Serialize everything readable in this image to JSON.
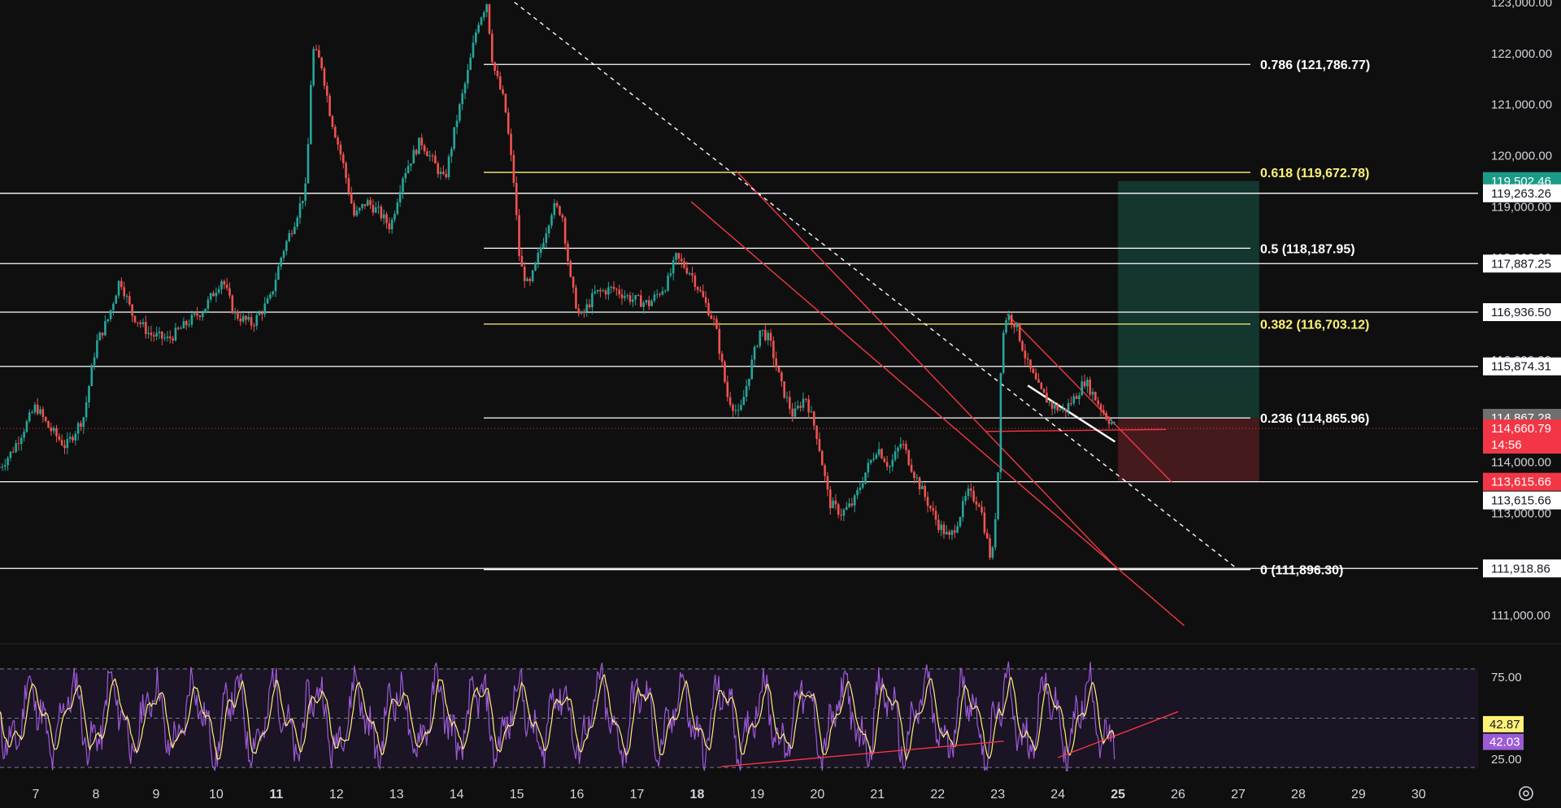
{
  "chart_data": [
    {
      "type": "candlestick",
      "price_axis": {
        "range": [
          110400,
          123000
        ],
        "ticks": [
          "123,000.00",
          "122,000.00",
          "121,000.00",
          "120,000.00",
          "119,000.00",
          "118,000.00",
          "117,000.00",
          "116,000.00",
          "114,000.00",
          "113,000.00",
          "112,000.00",
          "111,000.00"
        ]
      },
      "x_axis": {
        "ticks": [
          {
            "label": "7",
            "day": 7
          },
          {
            "label": "8",
            "day": 8
          },
          {
            "label": "9",
            "day": 9
          },
          {
            "label": "10",
            "day": 10
          },
          {
            "label": "11",
            "day": 11,
            "bold": true
          },
          {
            "label": "12",
            "day": 12
          },
          {
            "label": "13",
            "day": 13
          },
          {
            "label": "14",
            "day": 14
          },
          {
            "label": "15",
            "day": 15
          },
          {
            "label": "16",
            "day": 16
          },
          {
            "label": "17",
            "day": 17
          },
          {
            "label": "18",
            "day": 18,
            "bold": true
          },
          {
            "label": "19",
            "day": 19
          },
          {
            "label": "20",
            "day": 20
          },
          {
            "label": "21",
            "day": 21
          },
          {
            "label": "22",
            "day": 22
          },
          {
            "label": "23",
            "day": 23
          },
          {
            "label": "24",
            "day": 24
          },
          {
            "label": "25",
            "day": 25,
            "bold": true
          },
          {
            "label": "26",
            "day": 26
          },
          {
            "label": "27",
            "day": 27
          },
          {
            "label": "28",
            "day": 28
          },
          {
            "label": "29",
            "day": 29
          },
          {
            "label": "30",
            "day": 30
          }
        ]
      },
      "path_points": [
        [
          6.4,
          113900
        ],
        [
          6.6,
          114200
        ],
        [
          7.0,
          115100
        ],
        [
          7.2,
          114700
        ],
        [
          7.5,
          114300
        ],
        [
          7.8,
          114900
        ],
        [
          8.0,
          116300
        ],
        [
          8.2,
          116800
        ],
        [
          8.4,
          117600
        ],
        [
          8.6,
          116900
        ],
        [
          8.9,
          116500
        ],
        [
          9.2,
          116400
        ],
        [
          9.5,
          116700
        ],
        [
          9.8,
          117000
        ],
        [
          10.1,
          117600
        ],
        [
          10.3,
          116900
        ],
        [
          10.6,
          116700
        ],
        [
          10.9,
          117200
        ],
        [
          11.1,
          118100
        ],
        [
          11.3,
          118700
        ],
        [
          11.5,
          119400
        ],
        [
          11.6,
          122100
        ],
        [
          11.75,
          121800
        ],
        [
          11.9,
          120800
        ],
        [
          12.1,
          119900
        ],
        [
          12.3,
          118800
        ],
        [
          12.5,
          119100
        ],
        [
          12.7,
          118900
        ],
        [
          12.9,
          118600
        ],
        [
          13.1,
          119600
        ],
        [
          13.4,
          120300
        ],
        [
          13.6,
          119900
        ],
        [
          13.8,
          119500
        ],
        [
          14.0,
          120700
        ],
        [
          14.2,
          121700
        ],
        [
          14.35,
          122600
        ],
        [
          14.5,
          123000
        ],
        [
          14.6,
          121800
        ],
        [
          14.8,
          121000
        ],
        [
          14.95,
          119500
        ],
        [
          15.05,
          117900
        ],
        [
          15.2,
          117400
        ],
        [
          15.4,
          118200
        ],
        [
          15.6,
          119000
        ],
        [
          15.75,
          118900
        ],
        [
          15.9,
          117500
        ],
        [
          16.05,
          116800
        ],
        [
          16.3,
          117300
        ],
        [
          16.6,
          117400
        ],
        [
          16.9,
          117200
        ],
        [
          17.2,
          117100
        ],
        [
          17.5,
          117500
        ],
        [
          17.65,
          118000
        ],
        [
          17.9,
          117700
        ],
        [
          18.1,
          117200
        ],
        [
          18.3,
          116700
        ],
        [
          18.5,
          115300
        ],
        [
          18.7,
          114900
        ],
        [
          18.9,
          115900
        ],
        [
          19.05,
          116600
        ],
        [
          19.2,
          116400
        ],
        [
          19.4,
          115500
        ],
        [
          19.6,
          114900
        ],
        [
          19.8,
          115300
        ],
        [
          20.0,
          114500
        ],
        [
          20.2,
          113200
        ],
        [
          20.4,
          113000
        ],
        [
          20.6,
          113200
        ],
        [
          20.8,
          113800
        ],
        [
          21.0,
          114300
        ],
        [
          21.2,
          113900
        ],
        [
          21.4,
          114400
        ],
        [
          21.6,
          113800
        ],
        [
          21.8,
          113300
        ],
        [
          22.0,
          112800
        ],
        [
          22.2,
          112500
        ],
        [
          22.35,
          112900
        ],
        [
          22.5,
          113400
        ],
        [
          22.7,
          113200
        ],
        [
          22.9,
          112000
        ],
        [
          23.0,
          113600
        ],
        [
          23.06,
          116300
        ],
        [
          23.15,
          116900
        ],
        [
          23.3,
          116700
        ],
        [
          23.5,
          115900
        ],
        [
          23.7,
          115400
        ],
        [
          23.9,
          115100
        ],
        [
          24.1,
          115000
        ],
        [
          24.3,
          115300
        ],
        [
          24.45,
          115600
        ],
        [
          24.6,
          115300
        ],
        [
          24.8,
          114900
        ],
        [
          24.95,
          114700
        ]
      ],
      "fib_levels": [
        {
          "label": "0.786 (121,786.77)",
          "price": 121786.77,
          "color": "#ffffff"
        },
        {
          "label": "0.618 (119,672.78)",
          "price": 119672.78,
          "color": "#fff176"
        },
        {
          "label": "0.5 (118,187.95)",
          "price": 118187.95,
          "color": "#ffffff"
        },
        {
          "label": "0.382 (116,703.12)",
          "price": 116703.12,
          "color": "#fff176"
        },
        {
          "label": "0.236 (114,865.96)",
          "price": 114865.96,
          "color": "#ffffff"
        },
        {
          "label": "0 (111,896.30)",
          "price": 111896.3,
          "color": "#ffffff"
        }
      ],
      "horizontal_lines": [
        119263.26,
        117887.25,
        116936.5,
        115874.31,
        113615.66,
        111918.86
      ],
      "price_labels": [
        {
          "text": "119,502.46",
          "price": 119502.46,
          "bg": "#1a9b88",
          "fg": "#ffffff"
        },
        {
          "text": "119,263.26",
          "price": 119263.26,
          "bg": "#ffffff",
          "fg": "#131722"
        },
        {
          "text": "117,887.25",
          "price": 117887.25,
          "bg": "#ffffff",
          "fg": "#131722"
        },
        {
          "text": "116,936.50",
          "price": 116936.5,
          "bg": "#ffffff",
          "fg": "#131722"
        },
        {
          "text": "115,874.31",
          "price": 115874.31,
          "bg": "#ffffff",
          "fg": "#131722"
        },
        {
          "text": "114,867.28",
          "price": 114867.28,
          "bg": "#6f6f6f",
          "fg": "#ffffff"
        },
        {
          "text": "114,660.79",
          "price": 114660.79,
          "bg": "#f23645",
          "fg": "#ffffff",
          "sub": "14:56"
        },
        {
          "text": "113,615.66",
          "price": 113615.66,
          "bg": "#f23645",
          "fg": "#ffffff"
        },
        {
          "text": "113,615.66",
          "price": 113615.66,
          "bg": "#ffffff",
          "fg": "#131722",
          "offset": 1
        },
        {
          "text": "111,918.86",
          "price": 111918.86,
          "bg": "#ffffff",
          "fg": "#131722"
        }
      ],
      "current_price": 114660.79,
      "position": {
        "entry": 114867.28,
        "target": 119502.46,
        "stop": 113615.66,
        "from_day": 25.0,
        "to_day": 27.35
      },
      "trend_lines": [
        {
          "color": "#f23645",
          "from": [
            18.65,
            119700
          ],
          "to": [
            25.0,
            111900
          ]
        },
        {
          "color": "#f23645",
          "from": [
            17.9,
            119100
          ],
          "to": [
            26.1,
            110800
          ]
        },
        {
          "color": "#f23645",
          "from": [
            23.15,
            116900
          ],
          "to": [
            25.9,
            113600
          ]
        },
        {
          "color": "#f23645",
          "from": [
            22.8,
            114600
          ],
          "to": [
            25.8,
            114640
          ]
        },
        {
          "color": "#ffffff",
          "dashed": true,
          "from": [
            14.75,
            123200
          ],
          "to": [
            27.0,
            111896.3
          ]
        },
        {
          "color": "#ffffff",
          "from": [
            23.5,
            115500
          ],
          "to": [
            24.95,
            114400
          ]
        }
      ]
    },
    {
      "type": "line",
      "indicator": "RSI",
      "axis_ticks": [
        "75.00",
        "25.00"
      ],
      "levels": [
        80,
        50,
        20
      ],
      "series": [
        {
          "values_label": "42.87",
          "last": 42.87,
          "color": "#fff176",
          "bg": "#fff176"
        },
        {
          "values_label": "42.03",
          "last": 42.03,
          "color": "#9c5bd6",
          "bg": "#9c5bd6"
        }
      ],
      "trend_lines": [
        {
          "color": "#f23645",
          "from": [
            18.4,
            20.5
          ],
          "to": [
            23.1,
            36
          ]
        },
        {
          "color": "#f23645",
          "from": [
            24.0,
            26
          ],
          "to": [
            26.0,
            54
          ]
        }
      ]
    }
  ]
}
